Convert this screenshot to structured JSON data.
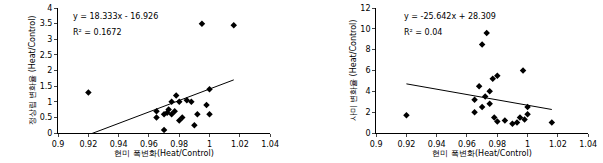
{
  "chart_data": [
    {
      "type": "scatter",
      "xlabel": "현미 폭변화(Heat/Control)",
      "ylabel": "정상립 변화율 (Heat/Control)",
      "x": [
        0.92,
        0.965,
        0.965,
        0.97,
        0.972,
        0.973,
        0.975,
        0.975,
        0.977,
        0.978,
        0.98,
        0.98,
        0.982,
        0.985,
        0.988,
        0.99,
        0.992,
        0.995,
        0.998,
        1.0,
        1.0,
        1.016,
        0.97
      ],
      "values": [
        1.3,
        0.5,
        0.7,
        0.6,
        0.65,
        0.75,
        0.6,
        1.0,
        0.7,
        1.2,
        1.0,
        0.4,
        0.5,
        1.05,
        1.0,
        0.25,
        0.6,
        3.5,
        0.9,
        1.4,
        0.6,
        3.45,
        0.1
      ],
      "trendline": {
        "slope": 18.333,
        "intercept": -16.926
      },
      "annotations": [
        "y = 18.333x - 16.926",
        "R² = 0.1672"
      ],
      "xlim": [
        0.9,
        1.04
      ],
      "xticks": [
        0.9,
        0.92,
        0.94,
        0.96,
        0.98,
        1,
        1.02,
        1.04
      ],
      "ylim": [
        0,
        4
      ],
      "yticks": [
        0,
        0.5,
        1,
        1.5,
        2,
        2.5,
        3,
        3.5,
        4
      ],
      "color": "#000000",
      "marker": "diamond",
      "grid": false
    },
    {
      "type": "scatter",
      "xlabel": "현미 폭변화(Heat/Control)",
      "ylabel": "사미 변화율 (Heat/Control)",
      "x": [
        0.92,
        0.965,
        0.965,
        0.968,
        0.97,
        0.972,
        0.973,
        0.975,
        0.975,
        0.977,
        0.978,
        0.98,
        0.98,
        0.985,
        0.99,
        0.993,
        0.995,
        0.997,
        0.998,
        1.0,
        1.0,
        1.016,
        0.97
      ],
      "values": [
        1.7,
        2.0,
        3.2,
        4.5,
        8.5,
        3.5,
        9.6,
        2.8,
        4.0,
        5.2,
        1.5,
        1.1,
        5.5,
        1.2,
        0.9,
        1.0,
        1.5,
        6.0,
        1.3,
        1.8,
        2.5,
        1.0,
        2.5
      ],
      "trendline": {
        "slope": -25.642,
        "intercept": 28.309
      },
      "annotations": [
        "y = -25.642x + 28.309",
        "R² = 0.04"
      ],
      "xlim": [
        0.9,
        1.04
      ],
      "xticks": [
        0.9,
        0.92,
        0.94,
        0.96,
        0.98,
        1,
        1.02,
        1.04
      ],
      "ylim": [
        0,
        12
      ],
      "yticks": [
        0,
        2,
        4,
        6,
        8,
        10,
        12
      ],
      "color": "#000000",
      "marker": "diamond",
      "grid": false
    }
  ]
}
